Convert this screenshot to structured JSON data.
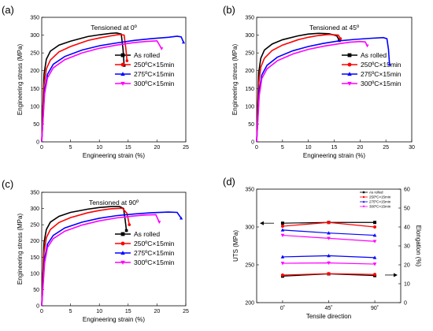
{
  "colors": {
    "as_rolled": "#000000",
    "c250": "#ff0000",
    "c275": "#0000ff",
    "c300": "#ff00ff"
  },
  "chart_data": [
    {
      "type": "line",
      "panel_label": "(a)",
      "title": "Tensioned at 0º",
      "xlabel": "Engineering strain (%)",
      "ylabel": "Engineering stress (MPa)",
      "xlim": [
        0,
        25
      ],
      "ylim": [
        0,
        350
      ],
      "xticks": [
        0,
        5,
        10,
        15,
        20,
        25
      ],
      "yticks": [
        0,
        50,
        100,
        150,
        200,
        250,
        300,
        350
      ],
      "legend_position": "right",
      "series": [
        {
          "name": "As rolled",
          "color_key": "as_rolled",
          "marker": "square",
          "x": [
            0,
            0.4,
            0.8,
            1.5,
            3,
            5,
            8,
            10,
            12,
            13,
            13.8,
            14.1,
            14.3
          ],
          "y": [
            0,
            190,
            232,
            255,
            272,
            283,
            296,
            301,
            305,
            306,
            303,
            262,
            215
          ]
        },
        {
          "name": "250ºC×15min",
          "color_key": "c250",
          "marker": "circle",
          "x": [
            0,
            0.4,
            0.8,
            1.5,
            3,
            5,
            8,
            10,
            12,
            13.5,
            14.3,
            14.6,
            14.8
          ],
          "y": [
            0,
            160,
            205,
            230,
            253,
            268,
            285,
            292,
            298,
            302,
            300,
            262,
            228
          ]
        },
        {
          "name": "275ºC×15min",
          "color_key": "c275",
          "marker": "triangle-up",
          "x": [
            0,
            0.5,
            1,
            2,
            4,
            7,
            10,
            13,
            16,
            19,
            22,
            23.5,
            24.2,
            24.6
          ],
          "y": [
            0,
            145,
            190,
            218,
            240,
            258,
            270,
            278,
            285,
            290,
            294,
            297,
            295,
            280
          ]
        },
        {
          "name": "300ºC×15min",
          "color_key": "c300",
          "marker": "triangle-down",
          "x": [
            0,
            0.5,
            1,
            2,
            4,
            7,
            10,
            13,
            16,
            18,
            20,
            20.8
          ],
          "y": [
            0,
            135,
            180,
            208,
            231,
            250,
            263,
            272,
            279,
            282,
            284,
            262
          ]
        }
      ]
    },
    {
      "type": "line",
      "panel_label": "(b)",
      "title": "Tensioned at 45º",
      "xlabel": "Engineering strain (%)",
      "ylabel": "Engineering stress (MPa)",
      "xlim": [
        0,
        30
      ],
      "ylim": [
        0,
        350
      ],
      "xticks": [
        0,
        5,
        10,
        15,
        20,
        25,
        30
      ],
      "yticks": [
        0,
        50,
        100,
        150,
        200,
        250,
        300,
        350
      ],
      "legend_position": "right",
      "series": [
        {
          "name": "As rolled",
          "color_key": "as_rolled",
          "marker": "square",
          "x": [
            0,
            0.4,
            0.8,
            1.5,
            3,
            5,
            8,
            10,
            12,
            14,
            15.5,
            16
          ],
          "y": [
            0,
            195,
            235,
            258,
            275,
            287,
            298,
            303,
            305,
            304,
            298,
            285
          ]
        },
        {
          "name": "250ºC×15min",
          "color_key": "c250",
          "marker": "circle",
          "x": [
            0,
            0.4,
            0.8,
            1.5,
            3,
            5,
            8,
            10,
            12,
            14,
            15.8,
            16.2
          ],
          "y": [
            0,
            165,
            210,
            235,
            257,
            272,
            287,
            294,
            299,
            302,
            300,
            290
          ]
        },
        {
          "name": "275ºC×15min",
          "color_key": "c275",
          "marker": "triangle-up",
          "x": [
            0,
            0.5,
            1,
            2,
            4,
            7,
            10,
            13,
            16,
            19,
            22,
            24.5,
            25.2,
            25.5,
            25.7
          ],
          "y": [
            0,
            145,
            188,
            215,
            238,
            256,
            268,
            277,
            284,
            288,
            291,
            293,
            290,
            260,
            218
          ]
        },
        {
          "name": "300ºC×15min",
          "color_key": "c300",
          "marker": "triangle-down",
          "x": [
            0,
            0.5,
            1,
            2,
            4,
            7,
            10,
            13,
            16,
            18,
            20,
            21,
            21.4
          ],
          "y": [
            0,
            130,
            178,
            205,
            228,
            247,
            260,
            269,
            276,
            280,
            282,
            281,
            270
          ]
        }
      ]
    },
    {
      "type": "line",
      "panel_label": "(c)",
      "title": "Tensioned at 90º",
      "xlabel": "Engineering strain (%)",
      "ylabel": "Engineering stress (MPa)",
      "xlim": [
        0,
        25
      ],
      "ylim": [
        0,
        350
      ],
      "xticks": [
        0,
        5,
        10,
        15,
        20,
        25
      ],
      "yticks": [
        0,
        50,
        100,
        150,
        200,
        250,
        300,
        350
      ],
      "legend_position": "right",
      "series": [
        {
          "name": "As rolled",
          "color_key": "as_rolled",
          "marker": "square",
          "x": [
            0,
            0.4,
            0.8,
            1.5,
            3,
            5,
            8,
            10,
            12,
            13.5,
            14.2,
            14.5,
            14.7
          ],
          "y": [
            0,
            195,
            235,
            258,
            276,
            288,
            298,
            303,
            306,
            306,
            300,
            262,
            232
          ]
        },
        {
          "name": "250ºC×15min",
          "color_key": "c250",
          "marker": "circle",
          "x": [
            0,
            0.4,
            0.8,
            1.5,
            3,
            5,
            8,
            10,
            12,
            14,
            14.8,
            15.2
          ],
          "y": [
            0,
            165,
            210,
            235,
            257,
            272,
            287,
            294,
            299,
            301,
            285,
            250
          ]
        },
        {
          "name": "275ºC×15min",
          "color_key": "c275",
          "marker": "triangle-up",
          "x": [
            0,
            0.5,
            1,
            2,
            4,
            7,
            10,
            13,
            16,
            19,
            22,
            23.5,
            24.2
          ],
          "y": [
            0,
            145,
            190,
            217,
            240,
            258,
            270,
            278,
            283,
            287,
            289,
            288,
            270
          ]
        },
        {
          "name": "300ºC×15min",
          "color_key": "c300",
          "marker": "triangle-down",
          "x": [
            0,
            0.5,
            1,
            2,
            4,
            7,
            10,
            13,
            16,
            18,
            19.8,
            20.4
          ],
          "y": [
            0,
            132,
            180,
            207,
            230,
            249,
            262,
            271,
            277,
            280,
            281,
            258
          ]
        }
      ]
    },
    {
      "type": "line",
      "panel_label": "(d)",
      "xlabel": "Tensile direction",
      "ylabel": "UTS (MPa)",
      "y2label": "Elongation (%)",
      "categories": [
        "0˚",
        "45˚",
        "90˚"
      ],
      "ylim": [
        200,
        350
      ],
      "yticks": [
        200,
        250,
        300,
        350
      ],
      "y2lim": [
        0,
        60
      ],
      "y2ticks": [
        0,
        10,
        20,
        30,
        40,
        50,
        60
      ],
      "legend_position": "top-right",
      "uts_series": [
        {
          "name": "As rolled",
          "color_key": "as_rolled",
          "marker": "square",
          "values": [
            305,
            306,
            306
          ]
        },
        {
          "name": "250ºC×15min",
          "color_key": "c250",
          "marker": "circle",
          "values": [
            301,
            306,
            300
          ]
        },
        {
          "name": "275ºC×15min",
          "color_key": "c275",
          "marker": "triangle-up",
          "values": [
            296,
            292,
            289
          ]
        },
        {
          "name": "300ºC×15min",
          "color_key": "c300",
          "marker": "triangle-down",
          "values": [
            289,
            285,
            281
          ]
        }
      ],
      "elongation_series": [
        {
          "name": "As rolled",
          "color_key": "as_rolled",
          "marker": "square",
          "values": [
            14.0,
            15.2,
            14.3
          ]
        },
        {
          "name": "250ºC×15min",
          "color_key": "c250",
          "marker": "circle",
          "values": [
            14.6,
            15.3,
            14.9
          ]
        },
        {
          "name": "275ºC×15min",
          "color_key": "c275",
          "marker": "triangle-up",
          "values": [
            24.2,
            24.8,
            23.8
          ]
        },
        {
          "name": "300ºC×15min",
          "color_key": "c300",
          "marker": "triangle-down",
          "values": [
            20.8,
            21.0,
            20.4
          ]
        }
      ],
      "uts_errors": [
        1.5,
        1.5,
        1.5,
        1.5
      ],
      "elongation_errors": [
        0.8,
        0.8,
        0.8,
        0.8
      ]
    }
  ]
}
